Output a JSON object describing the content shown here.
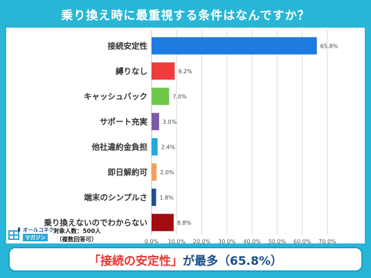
{
  "title": "乗り換え時に最重視する条件はなんですか？",
  "chart_data": {
    "type": "bar",
    "orientation": "horizontal",
    "categories": [
      "接続安定性",
      "縛りなし",
      "キャッシュバック",
      "サポート充実",
      "他社違約金負担",
      "即日解約可",
      "端末のシンプルさ",
      "乗り換えないのでわからない"
    ],
    "values": [
      65.8,
      9.2,
      7.0,
      3.0,
      2.4,
      2.0,
      1.8,
      8.8
    ],
    "value_labels": [
      "65.8%",
      "9.2%",
      "7.0%",
      "3.0%",
      "2.4%",
      "2.0%",
      "1.8%",
      "8.8%"
    ],
    "colors": [
      "#1e7be0",
      "#ef3b3b",
      "#6fc74a",
      "#7b5aa6",
      "#27a7dd",
      "#f2a25c",
      "#1f4e8c",
      "#a00c12"
    ],
    "xlim": [
      0,
      70
    ],
    "xticks": [
      "0.0%",
      "10.0%",
      "20.0%",
      "30.0%",
      "40.0%",
      "50.0%",
      "60.0%",
      "70.0%"
    ],
    "grid": true
  },
  "logo": {
    "line1": "オールコネクト",
    "line2": "マガジン"
  },
  "respondents": "対象人数：500人",
  "respondents_note": "（複数回答可）",
  "summary": {
    "highlight": "「接続の安定性」",
    "rest": "が最多（65.8%）"
  }
}
